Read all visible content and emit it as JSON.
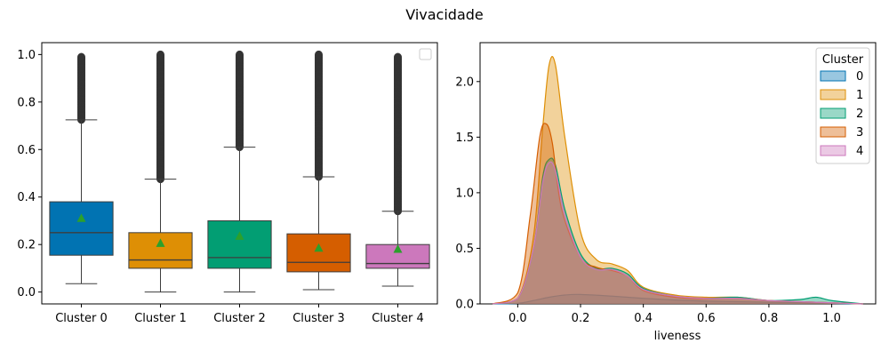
{
  "figure": {
    "title": "Vivacidade"
  },
  "colors": [
    "#0173b2",
    "#de8f05",
    "#029e73",
    "#d55e00",
    "#cc78bc"
  ],
  "chart_data": [
    {
      "type": "box",
      "title": "",
      "xlabel": "",
      "ylabel": "",
      "categories": [
        "Cluster 0",
        "Cluster 1",
        "Cluster 2",
        "Cluster 3",
        "Cluster 4"
      ],
      "ylim": [
        -0.05,
        1.05
      ],
      "yticks": [
        0.0,
        0.2,
        0.4,
        0.6,
        0.8,
        1.0
      ],
      "ytick_labels": [
        "0.0",
        "0.2",
        "0.4",
        "0.6",
        "0.8",
        "1.0"
      ],
      "boxes": [
        {
          "min": 0.035,
          "q1": 0.155,
          "median": 0.25,
          "q3": 0.38,
          "max": 0.725,
          "mean": 0.31,
          "outlier_range": [
            0.725,
            0.99
          ]
        },
        {
          "min": 0.0,
          "q1": 0.1,
          "median": 0.135,
          "q3": 0.25,
          "max": 0.475,
          "mean": 0.205,
          "outlier_range": [
            0.475,
            1.0
          ]
        },
        {
          "min": 0.0,
          "q1": 0.1,
          "median": 0.145,
          "q3": 0.3,
          "max": 0.61,
          "mean": 0.235,
          "outlier_range": [
            0.61,
            1.0
          ]
        },
        {
          "min": 0.01,
          "q1": 0.085,
          "median": 0.125,
          "q3": 0.245,
          "max": 0.485,
          "mean": 0.185,
          "outlier_range": [
            0.485,
            1.0
          ]
        },
        {
          "min": 0.025,
          "q1": 0.1,
          "median": 0.12,
          "q3": 0.2,
          "max": 0.34,
          "mean": 0.18,
          "outlier_range": [
            0.34,
            0.99
          ]
        }
      ],
      "legend": {
        "position": "upper right",
        "entries": []
      }
    },
    {
      "type": "area",
      "title": "",
      "xlabel": "liveness",
      "ylabel": "",
      "xlim": [
        -0.12,
        1.14
      ],
      "ylim": [
        0,
        2.35
      ],
      "xticks": [
        0.0,
        0.2,
        0.4,
        0.6,
        0.8,
        1.0
      ],
      "xtick_labels": [
        "0.0",
        "0.2",
        "0.4",
        "0.6",
        "0.8",
        "1.0"
      ],
      "yticks": [
        0.0,
        0.5,
        1.0,
        1.5,
        2.0
      ],
      "ytick_labels": [
        "0.0",
        "0.5",
        "1.0",
        "1.5",
        "2.0"
      ],
      "legend": {
        "title": "Cluster",
        "position": "upper right"
      },
      "series": [
        {
          "name": "0",
          "x": [
            -0.08,
            0.0,
            0.05,
            0.1,
            0.15,
            0.2,
            0.3,
            0.4,
            0.5,
            0.6,
            0.7,
            0.8,
            0.9,
            1.0,
            1.1
          ],
          "y": [
            0.0,
            0.005,
            0.03,
            0.06,
            0.08,
            0.085,
            0.07,
            0.05,
            0.035,
            0.025,
            0.02,
            0.015,
            0.012,
            0.005,
            0.0
          ]
        },
        {
          "name": "1",
          "x": [
            -0.08,
            0.0,
            0.05,
            0.08,
            0.1,
            0.12,
            0.15,
            0.2,
            0.25,
            0.3,
            0.35,
            0.4,
            0.5,
            0.6,
            0.7,
            0.8,
            0.9,
            1.0,
            1.1
          ],
          "y": [
            0.0,
            0.05,
            0.6,
            1.6,
            2.15,
            2.15,
            1.5,
            0.65,
            0.4,
            0.36,
            0.3,
            0.15,
            0.08,
            0.06,
            0.06,
            0.03,
            0.02,
            0.01,
            0.0
          ]
        },
        {
          "name": "2",
          "x": [
            -0.08,
            0.0,
            0.05,
            0.08,
            0.1,
            0.12,
            0.15,
            0.2,
            0.25,
            0.3,
            0.35,
            0.4,
            0.5,
            0.6,
            0.7,
            0.8,
            0.9,
            0.95,
            1.0,
            1.1
          ],
          "y": [
            0.0,
            0.05,
            0.5,
            1.15,
            1.3,
            1.25,
            0.85,
            0.45,
            0.32,
            0.32,
            0.27,
            0.14,
            0.07,
            0.05,
            0.06,
            0.03,
            0.04,
            0.06,
            0.03,
            0.0
          ]
        },
        {
          "name": "3",
          "x": [
            -0.08,
            0.0,
            0.04,
            0.07,
            0.09,
            0.11,
            0.14,
            0.2,
            0.25,
            0.3,
            0.35,
            0.4,
            0.5,
            0.6,
            0.7,
            0.8,
            0.9,
            1.0,
            1.1
          ],
          "y": [
            0.0,
            0.1,
            0.8,
            1.5,
            1.62,
            1.45,
            0.85,
            0.42,
            0.33,
            0.3,
            0.25,
            0.12,
            0.06,
            0.045,
            0.05,
            0.03,
            0.02,
            0.01,
            0.0
          ]
        },
        {
          "name": "4",
          "x": [
            -0.08,
            0.0,
            0.05,
            0.08,
            0.1,
            0.12,
            0.15,
            0.2,
            0.25,
            0.3,
            0.35,
            0.4,
            0.5,
            0.6,
            0.7,
            0.8,
            0.9,
            1.0,
            1.1
          ],
          "y": [
            0.0,
            0.05,
            0.5,
            1.1,
            1.27,
            1.2,
            0.8,
            0.42,
            0.31,
            0.31,
            0.25,
            0.13,
            0.07,
            0.05,
            0.05,
            0.03,
            0.02,
            0.01,
            0.0
          ]
        }
      ]
    }
  ]
}
